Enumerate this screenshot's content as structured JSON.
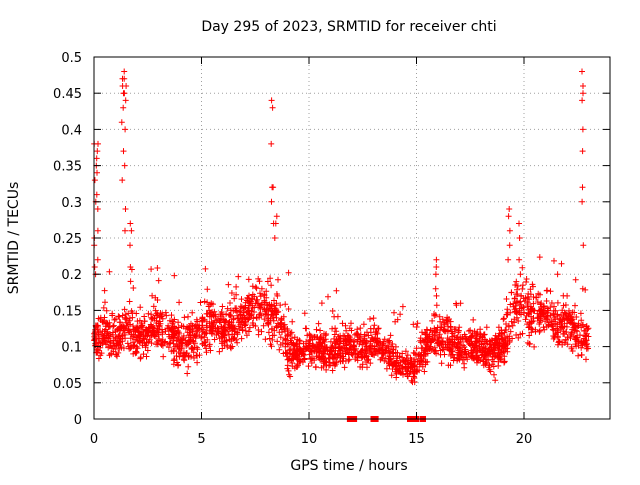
{
  "chart_data": {
    "type": "scatter",
    "title": "Day 295 of 2023, SRMTID for receiver chti",
    "xlabel": "GPS time / hours",
    "ylabel": "SRMTID / TECUs",
    "xlim": [
      0,
      24
    ],
    "ylim": [
      0,
      0.5
    ],
    "xticks": [
      0,
      5,
      10,
      15,
      20
    ],
    "xtick_labels": [
      "0",
      "5",
      "10",
      "15",
      "20"
    ],
    "yticks": [
      0,
      0.05,
      0.1,
      0.15,
      0.2,
      0.25,
      0.3,
      0.35,
      0.4,
      0.45,
      0.5
    ],
    "ytick_labels": [
      "0",
      "0.05",
      "0.1",
      "0.15",
      "0.2",
      "0.25",
      "0.3",
      "0.35",
      "0.4",
      "0.45",
      "0.5"
    ],
    "grid": true,
    "marker": "+",
    "color": "#ff0000",
    "series": [
      {
        "name": "SRMTID",
        "trend": {
          "x": [
            0,
            0.5,
            1,
            1.5,
            2,
            2.5,
            3,
            3.5,
            4,
            4.5,
            5,
            5.5,
            6,
            6.5,
            7,
            7.5,
            8,
            8.5,
            9,
            9.5,
            10,
            10.5,
            11,
            11.5,
            12,
            12.5,
            13,
            13.5,
            14,
            14.5,
            15,
            15.5,
            16,
            16.5,
            17,
            17.5,
            18,
            18.5,
            19,
            19.5,
            20,
            20.5,
            21,
            21.5,
            22,
            22.5,
            23
          ],
          "y": [
            0.11,
            0.12,
            0.11,
            0.13,
            0.11,
            0.12,
            0.13,
            0.12,
            0.1,
            0.11,
            0.12,
            0.13,
            0.12,
            0.13,
            0.14,
            0.16,
            0.15,
            0.14,
            0.1,
            0.09,
            0.1,
            0.1,
            0.09,
            0.1,
            0.1,
            0.1,
            0.11,
            0.09,
            0.08,
            0.07,
            0.07,
            0.1,
            0.12,
            0.11,
            0.1,
            0.1,
            0.1,
            0.09,
            0.1,
            0.15,
            0.16,
            0.14,
            0.15,
            0.13,
            0.13,
            0.12,
            0.1
          ],
          "spread": [
            0.03,
            0.03,
            0.03,
            0.03,
            0.03,
            0.03,
            0.03,
            0.03,
            0.03,
            0.03,
            0.03,
            0.03,
            0.03,
            0.03,
            0.03,
            0.035,
            0.04,
            0.035,
            0.03,
            0.02,
            0.025,
            0.025,
            0.025,
            0.025,
            0.025,
            0.025,
            0.03,
            0.025,
            0.02,
            0.02,
            0.02,
            0.03,
            0.035,
            0.03,
            0.025,
            0.025,
            0.025,
            0.025,
            0.03,
            0.035,
            0.04,
            0.035,
            0.035,
            0.03,
            0.03,
            0.03,
            0.03
          ],
          "count": 2400
        },
        "spikes": [
          {
            "x": 0.05,
            "values": [
              0.2,
              0.21,
              0.24,
              0.25,
              0.28,
              0.3,
              0.33,
              0.35,
              0.38
            ]
          },
          {
            "x": 0.18,
            "values": [
              0.22,
              0.26,
              0.29,
              0.31,
              0.34,
              0.36,
              0.37,
              0.38
            ]
          },
          {
            "x": 1.35,
            "values": [
              0.33,
              0.37,
              0.41,
              0.43,
              0.45,
              0.46,
              0.47,
              0.48
            ]
          },
          {
            "x": 1.45,
            "values": [
              0.26,
              0.29,
              0.35,
              0.4,
              0.44,
              0.45,
              0.46,
              0.47
            ]
          },
          {
            "x": 1.7,
            "values": [
              0.19,
              0.21,
              0.24,
              0.26,
              0.27
            ]
          },
          {
            "x": 8.3,
            "values": [
              0.27,
              0.3,
              0.32,
              0.32,
              0.38,
              0.43,
              0.44
            ]
          },
          {
            "x": 8.45,
            "values": [
              0.25,
              0.27,
              0.28
            ]
          },
          {
            "x": 15.9,
            "values": [
              0.17,
              0.18,
              0.2,
              0.21,
              0.22
            ]
          },
          {
            "x": 19.3,
            "values": [
              0.22,
              0.24,
              0.26,
              0.28,
              0.29
            ]
          },
          {
            "x": 19.8,
            "values": [
              0.2,
              0.22,
              0.25,
              0.27
            ]
          },
          {
            "x": 22.75,
            "values": [
              0.18,
              0.24,
              0.3,
              0.32,
              0.37,
              0.4,
              0.44,
              0.45,
              0.46,
              0.48
            ]
          }
        ],
        "zero_markers_x": [
          11.9,
          12.1,
          13.0,
          13.1,
          14.7,
          14.8,
          15.0,
          15.3
        ]
      }
    ]
  }
}
